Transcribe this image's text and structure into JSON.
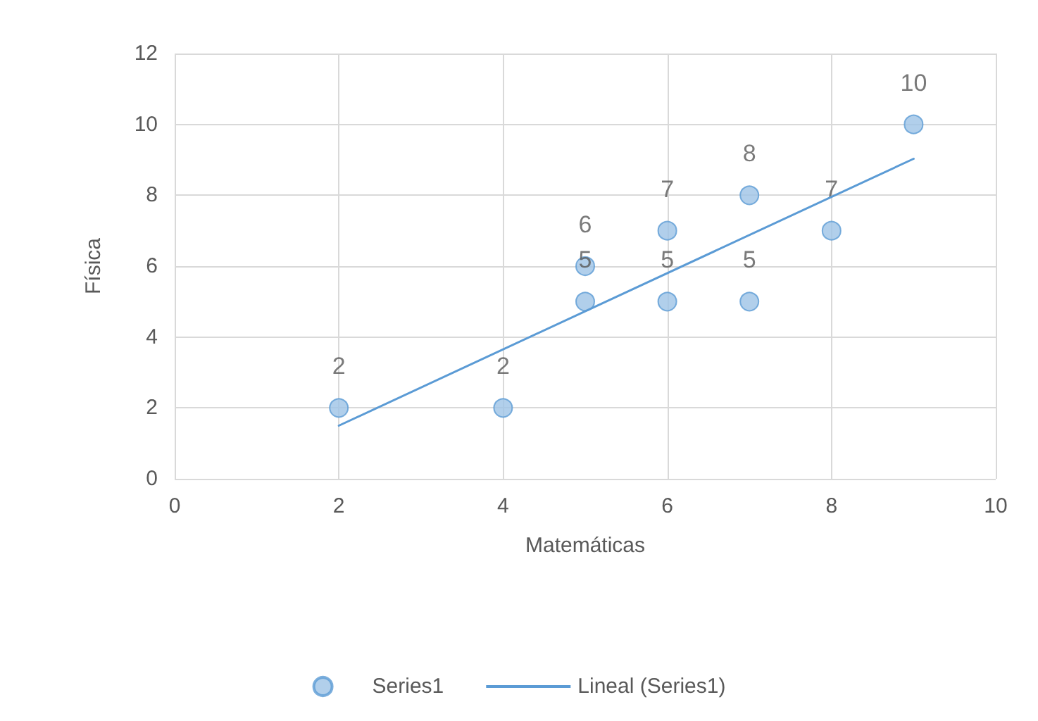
{
  "chart_data": {
    "type": "scatter",
    "xlabel": "Matemáticas",
    "ylabel": "Física",
    "series": [
      {
        "name": "Series1",
        "color": "#9dc3e6",
        "marker": "circle",
        "x": [
          2,
          4,
          5,
          5,
          6,
          6,
          7,
          7,
          8,
          9
        ],
        "values": [
          2,
          2,
          6,
          5,
          7,
          5,
          8,
          5,
          7,
          10
        ],
        "value_labels": [
          "2",
          "2",
          "6",
          "5",
          "7",
          "5",
          "8",
          "5",
          "7",
          "10"
        ]
      },
      {
        "name": "Lineal (Series1)",
        "type": "line",
        "color": "#5b9bd5",
        "marker": "none",
        "line_style": "solid",
        "x": [
          2,
          9
        ],
        "values": [
          1.5,
          9.03
        ]
      }
    ],
    "xlim": [
      0,
      10
    ],
    "xticks": [
      0,
      2,
      4,
      6,
      8,
      10
    ],
    "ylim": [
      0,
      12
    ],
    "yticks": [
      0,
      2,
      4,
      6,
      8,
      10,
      12
    ],
    "grid": true,
    "legend": "bottom"
  }
}
